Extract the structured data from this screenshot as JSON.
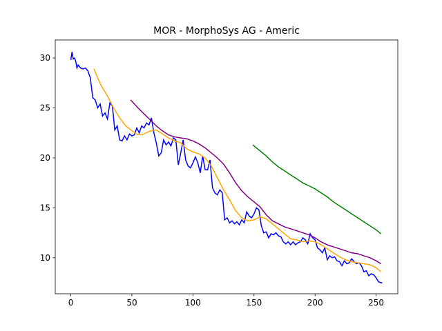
{
  "chart_data": {
    "type": "line",
    "title": "MOR - MorphoSys AG - Americ",
    "xlim": [
      -12.75,
      267.75
    ],
    "xticks": [
      0,
      50,
      100,
      150,
      200,
      250
    ],
    "ylim": [
      6.4,
      31.8
    ],
    "yticks": [
      10,
      15,
      20,
      25,
      30
    ],
    "series": [
      {
        "color": "#0000ff",
        "x": [
          0,
          1,
          2,
          3,
          4,
          5,
          6,
          8,
          10,
          12,
          14,
          16,
          18,
          20,
          22,
          24,
          26,
          28,
          30,
          32,
          34,
          36,
          38,
          40,
          42,
          44,
          46,
          48,
          50,
          52,
          54,
          56,
          58,
          60,
          62,
          64,
          66,
          68,
          70,
          72,
          74,
          76,
          78,
          80,
          82,
          84,
          86,
          88,
          90,
          92,
          94,
          96,
          98,
          100,
          102,
          104,
          106,
          108,
          110,
          112,
          114,
          116,
          118,
          120,
          122,
          124,
          126,
          128,
          130,
          132,
          134,
          136,
          138,
          140,
          142,
          144,
          146,
          148,
          150,
          152,
          154,
          156,
          158,
          160,
          162,
          164,
          166,
          168,
          170,
          172,
          174,
          176,
          178,
          180,
          182,
          184,
          186,
          188,
          190,
          192,
          194,
          196,
          198,
          200,
          202,
          204,
          206,
          208,
          210,
          212,
          214,
          216,
          218,
          220,
          222,
          224,
          226,
          228,
          230,
          232,
          234,
          236,
          238,
          240,
          242,
          244,
          246,
          248,
          250,
          252,
          254,
          255
        ],
        "values": [
          29.8,
          30.6,
          29.9,
          30.0,
          29.7,
          29.0,
          29.3,
          29.0,
          28.9,
          29.0,
          28.7,
          28.0,
          26.0,
          25.8,
          25.0,
          25.4,
          24.2,
          24.5,
          23.9,
          25.5,
          25.2,
          22.8,
          23.2,
          21.8,
          21.7,
          22.2,
          21.8,
          22.4,
          22.2,
          22.3,
          23.0,
          22.5,
          23.2,
          23.0,
          23.5,
          23.3,
          24.0,
          22.5,
          21.5,
          20.2,
          20.5,
          21.8,
          21.3,
          21.6,
          21.2,
          22.0,
          21.8,
          19.3,
          20.5,
          21.8,
          19.8,
          19.2,
          19.0,
          19.5,
          20.1,
          19.5,
          18.5,
          20.2,
          18.8,
          18.8,
          19.8,
          17.0,
          16.5,
          16.3,
          16.8,
          16.5,
          13.8,
          14.0,
          13.5,
          13.7,
          13.4,
          13.6,
          13.3,
          13.8,
          13.5,
          14.6,
          14.2,
          14.0,
          14.4,
          15.0,
          14.8,
          13.2,
          12.5,
          12.6,
          12.0,
          12.4,
          12.3,
          12.5,
          12.2,
          12.1,
          11.6,
          11.4,
          11.6,
          11.3,
          11.6,
          11.3,
          11.5,
          11.6,
          12.0,
          11.8,
          11.4,
          12.4,
          12.0,
          11.8,
          11.0,
          10.8,
          10.5,
          11.0,
          9.8,
          10.2,
          10.0,
          10.1,
          9.7,
          9.6,
          9.2,
          9.7,
          9.4,
          9.5,
          9.9,
          9.6,
          9.4,
          9.5,
          9.2,
          8.6,
          8.7,
          8.2,
          8.4,
          8.3,
          8.0,
          7.6,
          7.5,
          7.5
        ]
      },
      {
        "color": "#ffa500",
        "x": [
          19,
          22,
          25,
          30,
          35,
          40,
          45,
          50,
          55,
          60,
          65,
          70,
          75,
          80,
          85,
          90,
          95,
          100,
          105,
          110,
          115,
          120,
          125,
          130,
          135,
          140,
          145,
          150,
          155,
          160,
          165,
          170,
          175,
          180,
          185,
          190,
          195,
          200,
          205,
          210,
          215,
          220,
          225,
          230,
          235,
          240,
          245,
          250,
          254
        ],
        "values": [
          28.9,
          28.0,
          27.2,
          26.2,
          25.0,
          24.0,
          23.2,
          22.7,
          22.3,
          22.4,
          22.7,
          22.8,
          22.4,
          22.0,
          21.7,
          21.5,
          20.9,
          20.6,
          20.4,
          20.0,
          19.2,
          18.0,
          16.8,
          15.8,
          14.7,
          14.0,
          13.7,
          13.8,
          14.1,
          13.9,
          13.4,
          12.9,
          12.4,
          11.9,
          11.8,
          11.6,
          11.7,
          11.6,
          11.3,
          10.9,
          10.5,
          10.1,
          9.8,
          9.6,
          9.5,
          9.4,
          9.3,
          9.0,
          8.6
        ]
      },
      {
        "color": "#800080",
        "x": [
          49,
          55,
          60,
          65,
          70,
          75,
          80,
          85,
          90,
          95,
          100,
          105,
          110,
          115,
          120,
          125,
          130,
          135,
          140,
          145,
          150,
          155,
          160,
          165,
          170,
          175,
          180,
          185,
          190,
          195,
          200,
          205,
          210,
          215,
          220,
          225,
          230,
          235,
          240,
          245,
          250,
          254
        ],
        "values": [
          25.8,
          25.0,
          24.4,
          23.8,
          23.2,
          22.7,
          22.3,
          22.1,
          22.0,
          21.9,
          21.7,
          21.4,
          21.0,
          20.5,
          20.0,
          19.4,
          18.5,
          17.5,
          16.7,
          16.1,
          15.6,
          15.1,
          14.3,
          13.7,
          13.4,
          13.1,
          12.9,
          12.7,
          12.5,
          12.3,
          12.0,
          11.6,
          11.3,
          11.1,
          10.9,
          10.7,
          10.5,
          10.4,
          10.2,
          10.0,
          9.7,
          9.4
        ]
      },
      {
        "color": "#008000",
        "x": [
          149,
          155,
          160,
          165,
          170,
          175,
          180,
          185,
          190,
          195,
          200,
          205,
          210,
          215,
          220,
          225,
          230,
          235,
          240,
          245,
          250,
          254
        ],
        "values": [
          21.3,
          20.7,
          20.2,
          19.6,
          19.1,
          18.7,
          18.3,
          17.9,
          17.5,
          17.2,
          16.9,
          16.5,
          16.1,
          15.6,
          15.2,
          14.8,
          14.4,
          14.0,
          13.6,
          13.2,
          12.8,
          12.4
        ]
      }
    ]
  }
}
